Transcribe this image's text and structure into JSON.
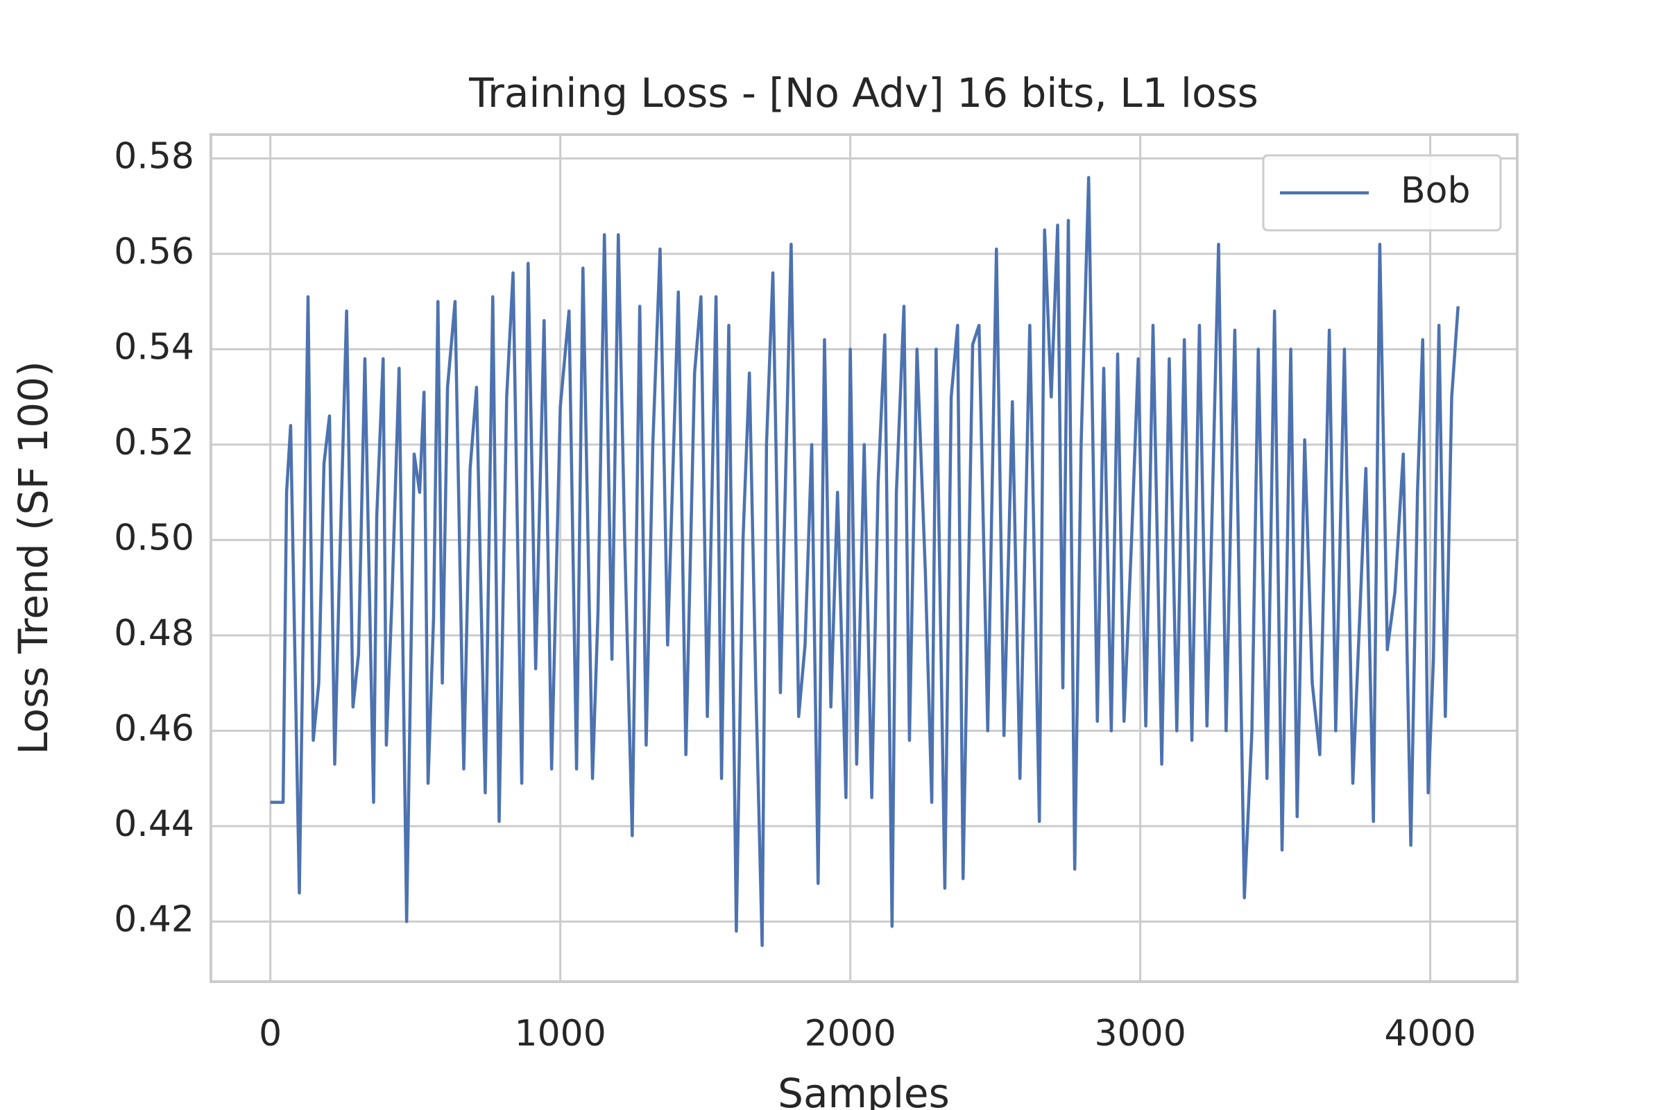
{
  "chart_data": {
    "type": "line",
    "title": "Training Loss - [No Adv] 16 bits, L1 loss",
    "x_label": "Samples",
    "y_label": "Loss Trend (SF 100)",
    "xlim": [
      -205,
      4300
    ],
    "ylim": [
      0.4074,
      0.585
    ],
    "xticks": [
      0,
      1000,
      2000,
      3000,
      4000
    ],
    "yticks": [
      {
        "value": 0.42,
        "label": "0.42"
      },
      {
        "value": 0.44,
        "label": "0.44"
      },
      {
        "value": 0.46,
        "label": "0.46"
      },
      {
        "value": 0.48,
        "label": "0.48"
      },
      {
        "value": 0.5,
        "label": "0.50"
      },
      {
        "value": 0.52,
        "label": "0.52"
      },
      {
        "value": 0.54,
        "label": "0.54"
      },
      {
        "value": 0.56,
        "label": "0.56"
      },
      {
        "value": 0.58,
        "label": "0.58"
      }
    ],
    "grid": true,
    "legend": "upper right",
    "x": [
      0,
      44,
      56,
      70,
      100,
      130,
      148,
      167,
      185,
      204,
      222,
      237,
      263,
      285,
      304,
      326,
      356,
      367,
      389,
      400,
      419,
      444,
      470,
      496,
      515,
      530,
      544,
      563,
      578,
      593,
      611,
      637,
      667,
      689,
      711,
      741,
      767,
      789,
      815,
      837,
      867,
      889,
      915,
      944,
      970,
      1000,
      1030,
      1056,
      1078,
      1111,
      1130,
      1152,
      1178,
      1200,
      1222,
      1248,
      1274,
      1296,
      1319,
      1344,
      1370,
      1407,
      1433,
      1463,
      1485,
      1507,
      1537,
      1556,
      1581,
      1607,
      1630,
      1652,
      1674,
      1696,
      1711,
      1733,
      1759,
      1796,
      1822,
      1844,
      1867,
      1889,
      1911,
      1933,
      1956,
      1985,
      2000,
      2022,
      2048,
      2074,
      2096,
      2119,
      2144,
      2159,
      2185,
      2204,
      2230,
      2259,
      2281,
      2296,
      2326,
      2348,
      2370,
      2389,
      2422,
      2444,
      2474,
      2504,
      2530,
      2559,
      2585,
      2619,
      2652,
      2670,
      2693,
      2715,
      2733,
      2752,
      2774,
      2796,
      2822,
      2852,
      2874,
      2900,
      2922,
      2944,
      2970,
      2993,
      3019,
      3044,
      3074,
      3100,
      3126,
      3152,
      3178,
      3204,
      3230,
      3270,
      3296,
      3326,
      3359,
      3385,
      3407,
      3437,
      3463,
      3489,
      3519,
      3541,
      3567,
      3593,
      3619,
      3652,
      3674,
      3704,
      3733,
      3778,
      3804,
      3826,
      3852,
      3878,
      3907,
      3933,
      3956,
      3974,
      3993,
      4011,
      4030,
      4052,
      4074,
      4096
    ],
    "series": [
      {
        "name": "Bob",
        "color": "#4c72b0",
        "values": [
          0.445,
          0.445,
          0.51,
          0.524,
          0.426,
          0.551,
          0.458,
          0.47,
          0.516,
          0.526,
          0.453,
          0.49,
          0.548,
          0.465,
          0.476,
          0.538,
          0.445,
          0.505,
          0.538,
          0.457,
          0.487,
          0.536,
          0.42,
          0.518,
          0.51,
          0.531,
          0.449,
          0.484,
          0.55,
          0.47,
          0.532,
          0.55,
          0.452,
          0.515,
          0.532,
          0.447,
          0.551,
          0.441,
          0.53,
          0.556,
          0.449,
          0.558,
          0.473,
          0.546,
          0.452,
          0.528,
          0.548,
          0.452,
          0.557,
          0.45,
          0.485,
          0.564,
          0.475,
          0.564,
          0.5,
          0.438,
          0.549,
          0.457,
          0.52,
          0.561,
          0.478,
          0.552,
          0.455,
          0.535,
          0.551,
          0.463,
          0.551,
          0.45,
          0.545,
          0.418,
          0.5,
          0.535,
          0.47,
          0.415,
          0.52,
          0.556,
          0.468,
          0.562,
          0.463,
          0.478,
          0.52,
          0.428,
          0.542,
          0.465,
          0.51,
          0.446,
          0.54,
          0.453,
          0.52,
          0.446,
          0.512,
          0.543,
          0.419,
          0.51,
          0.549,
          0.458,
          0.54,
          0.493,
          0.445,
          0.54,
          0.427,
          0.53,
          0.545,
          0.429,
          0.541,
          0.545,
          0.46,
          0.561,
          0.459,
          0.529,
          0.45,
          0.545,
          0.441,
          0.565,
          0.53,
          0.566,
          0.469,
          0.567,
          0.431,
          0.52,
          0.576,
          0.462,
          0.536,
          0.46,
          0.539,
          0.462,
          0.5,
          0.538,
          0.461,
          0.545,
          0.453,
          0.538,
          0.46,
          0.542,
          0.458,
          0.545,
          0.461,
          0.562,
          0.46,
          0.544,
          0.425,
          0.46,
          0.54,
          0.45,
          0.548,
          0.435,
          0.54,
          0.442,
          0.521,
          0.47,
          0.455,
          0.544,
          0.46,
          0.54,
          0.449,
          0.515,
          0.441,
          0.562,
          0.477,
          0.489,
          0.518,
          0.436,
          0.51,
          0.542,
          0.447,
          0.475,
          0.545,
          0.463,
          0.53,
          0.549
        ]
      }
    ]
  }
}
